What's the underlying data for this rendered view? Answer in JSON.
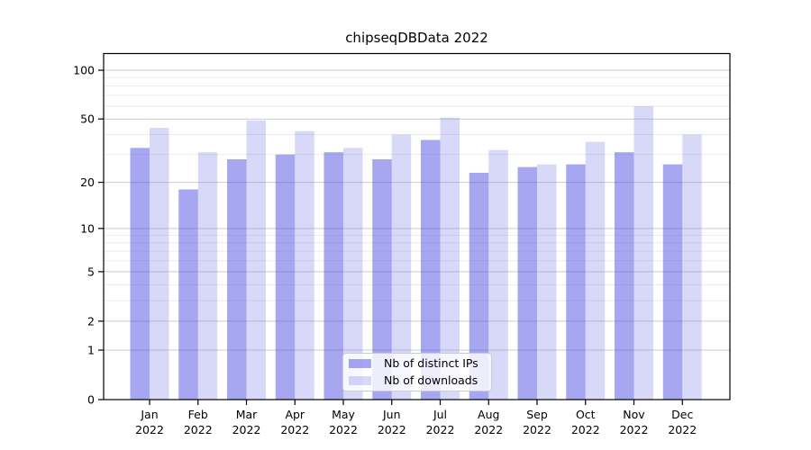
{
  "figure": {
    "title": "chipseqDBData 2022"
  },
  "legend": {
    "position": "lower center",
    "items": [
      {
        "label": "Nb of distinct IPs",
        "color": "rgba(84,84,228,0.52)"
      },
      {
        "label": "Nb of downloads",
        "color": "rgba(125,125,232,0.30)"
      }
    ]
  },
  "colors": {
    "bar_distinct_ips": "rgba(84,84,228,0.52)",
    "bar_downloads": "rgba(125,125,232,0.30)",
    "major_grid": "#cbcbcb",
    "minor_grid": "#eaeaea",
    "axis": "#000000",
    "text": "#000000",
    "background": "#ffffff"
  },
  "chart_data": {
    "type": "bar",
    "title": "chipseqDBData 2022",
    "categories": [
      {
        "month": "Jan",
        "year": "2022"
      },
      {
        "month": "Feb",
        "year": "2022"
      },
      {
        "month": "Mar",
        "year": "2022"
      },
      {
        "month": "Apr",
        "year": "2022"
      },
      {
        "month": "May",
        "year": "2022"
      },
      {
        "month": "Jun",
        "year": "2022"
      },
      {
        "month": "Jul",
        "year": "2022"
      },
      {
        "month": "Aug",
        "year": "2022"
      },
      {
        "month": "Sep",
        "year": "2022"
      },
      {
        "month": "Oct",
        "year": "2022"
      },
      {
        "month": "Nov",
        "year": "2022"
      },
      {
        "month": "Dec",
        "year": "2022"
      }
    ],
    "series": [
      {
        "name": "Nb of distinct IPs",
        "values": [
          33,
          18,
          28,
          30,
          31,
          28,
          37,
          23,
          25,
          26,
          31,
          26
        ],
        "color": "rgba(84,84,228,0.52)"
      },
      {
        "name": "Nb of downloads",
        "values": [
          44,
          31,
          49,
          42,
          33,
          40,
          51,
          32,
          26,
          36,
          60,
          40
        ],
        "color": "rgba(125,125,232,0.30)"
      }
    ],
    "yscale": "log1p",
    "y_tick_values": [
      0,
      1,
      2,
      5,
      10,
      20,
      50,
      100
    ],
    "y_tick_labels": [
      "0",
      "1",
      "2",
      "5",
      "10",
      "20",
      "50",
      "100"
    ],
    "y_minor_tick_values": [
      3,
      4,
      6,
      7,
      8,
      9,
      30,
      40,
      60,
      70,
      80,
      90
    ],
    "ylim": [
      0,
      127
    ],
    "xlabel": "",
    "ylabel": "",
    "grid": true,
    "legend_position": "lower center"
  }
}
